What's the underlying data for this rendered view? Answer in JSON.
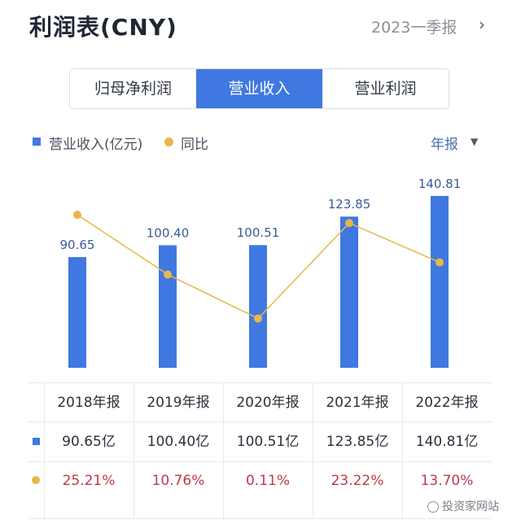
{
  "header": {
    "title": "利润表(CNY)",
    "period": "2023一季报",
    "chevron": "›"
  },
  "tabs": [
    {
      "label": "归母净利润",
      "active": false
    },
    {
      "label": "营业收入",
      "active": true
    },
    {
      "label": "营业利润",
      "active": false
    }
  ],
  "legend": {
    "bar_label": "营业收入(亿元)",
    "line_label": "同比",
    "period_select": "年报",
    "dropdown_glyph": "▼"
  },
  "colors": {
    "bar": "#3f78e0",
    "line": "#e8b64a",
    "growth_text": "#c0384a"
  },
  "chart_data": {
    "type": "bar",
    "categories": [
      "2018年报",
      "2019年报",
      "2020年报",
      "2021年报",
      "2022年报"
    ],
    "series": [
      {
        "name": "营业收入(亿元)",
        "type": "bar",
        "values": [
          90.65,
          100.4,
          100.51,
          123.85,
          140.81
        ],
        "labels": [
          "90.65",
          "100.40",
          "100.51",
          "123.85",
          "140.81"
        ]
      },
      {
        "name": "同比",
        "type": "line",
        "values": [
          25.21,
          10.76,
          0.11,
          23.22,
          13.7
        ]
      }
    ],
    "grid": false
  },
  "table": {
    "revenue_cells": [
      "90.65亿",
      "100.40亿",
      "100.51亿",
      "123.85亿",
      "140.81亿"
    ],
    "growth_cells": [
      "25.21%",
      "10.76%",
      "0.11%",
      "23.22%",
      "13.70%"
    ]
  },
  "watermark": "投资家网站"
}
